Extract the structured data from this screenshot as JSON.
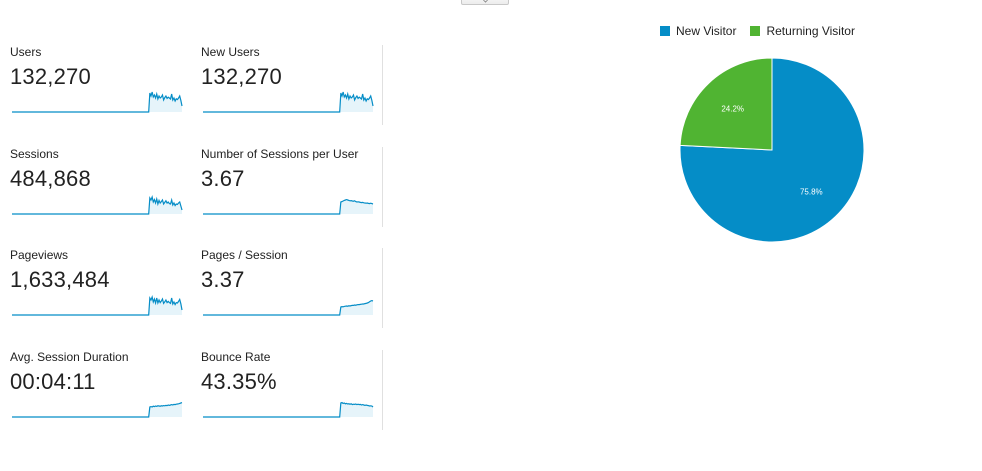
{
  "metrics": [
    {
      "label": "Users",
      "value": "132,270",
      "trend": [
        0,
        0,
        0,
        0,
        0,
        0,
        0,
        0,
        0,
        0,
        0,
        0,
        0,
        0,
        0,
        0,
        0,
        0,
        0,
        0,
        0,
        0,
        0,
        0,
        0,
        0,
        0,
        0,
        0,
        0,
        0,
        0,
        0,
        0,
        0,
        0,
        0,
        0,
        0,
        0,
        0,
        0,
        0,
        0,
        0,
        0,
        0,
        0,
        0,
        0,
        0,
        0,
        0,
        0,
        0,
        0,
        0,
        0,
        0,
        0,
        0,
        0,
        0,
        0,
        0,
        0,
        0,
        0,
        0,
        0,
        0,
        0,
        0,
        0,
        0,
        0,
        0,
        0,
        0,
        0,
        0,
        0,
        0,
        0,
        0,
        0,
        0,
        0,
        0,
        0,
        0,
        0,
        0,
        0,
        0,
        0,
        0,
        0,
        0,
        0,
        0,
        0,
        0,
        0,
        0,
        0,
        0,
        0,
        0,
        0,
        0,
        0,
        0,
        0,
        0,
        0,
        0,
        0,
        0,
        0,
        0.95,
        0.8,
        1.0,
        0.75,
        0.85,
        0.7,
        0.9,
        0.65,
        0.8,
        0.7,
        0.75,
        0.85,
        0.6,
        0.72,
        0.8,
        0.68,
        0.74,
        0.7,
        0.65,
        0.9,
        0.6,
        0.7,
        0.55,
        0.66,
        0.62,
        0.7,
        0.8,
        0.58,
        0.3
      ]
    },
    {
      "label": "New Users",
      "value": "132,270",
      "trend": [
        0,
        0,
        0,
        0,
        0,
        0,
        0,
        0,
        0,
        0,
        0,
        0,
        0,
        0,
        0,
        0,
        0,
        0,
        0,
        0,
        0,
        0,
        0,
        0,
        0,
        0,
        0,
        0,
        0,
        0,
        0,
        0,
        0,
        0,
        0,
        0,
        0,
        0,
        0,
        0,
        0,
        0,
        0,
        0,
        0,
        0,
        0,
        0,
        0,
        0,
        0,
        0,
        0,
        0,
        0,
        0,
        0,
        0,
        0,
        0,
        0,
        0,
        0,
        0,
        0,
        0,
        0,
        0,
        0,
        0,
        0,
        0,
        0,
        0,
        0,
        0,
        0,
        0,
        0,
        0,
        0,
        0,
        0,
        0,
        0,
        0,
        0,
        0,
        0,
        0,
        0,
        0,
        0,
        0,
        0,
        0,
        0,
        0,
        0,
        0,
        0,
        0,
        0,
        0,
        0,
        0,
        0,
        0,
        0,
        0,
        0,
        0,
        0,
        0,
        0,
        0,
        0,
        0,
        0,
        0,
        0.95,
        0.8,
        1.0,
        0.75,
        0.85,
        0.7,
        0.9,
        0.65,
        0.8,
        0.7,
        0.75,
        0.85,
        0.6,
        0.72,
        0.8,
        0.68,
        0.74,
        0.7,
        0.65,
        0.9,
        0.6,
        0.7,
        0.55,
        0.66,
        0.62,
        0.7,
        0.8,
        0.58,
        0.3
      ]
    },
    {
      "label": "Sessions",
      "value": "484,868",
      "trend": [
        0,
        0,
        0,
        0,
        0,
        0,
        0,
        0,
        0,
        0,
        0,
        0,
        0,
        0,
        0,
        0,
        0,
        0,
        0,
        0,
        0,
        0,
        0,
        0,
        0,
        0,
        0,
        0,
        0,
        0,
        0,
        0,
        0,
        0,
        0,
        0,
        0,
        0,
        0,
        0,
        0,
        0,
        0,
        0,
        0,
        0,
        0,
        0,
        0,
        0,
        0,
        0,
        0,
        0,
        0,
        0,
        0,
        0,
        0,
        0,
        0,
        0,
        0,
        0,
        0,
        0,
        0,
        0,
        0,
        0,
        0,
        0,
        0,
        0,
        0,
        0,
        0,
        0,
        0,
        0,
        0,
        0,
        0,
        0,
        0,
        0,
        0,
        0,
        0,
        0,
        0,
        0,
        0,
        0,
        0,
        0,
        0,
        0,
        0,
        0,
        0,
        0,
        0,
        0,
        0,
        0,
        0,
        0,
        0,
        0,
        0,
        0,
        0,
        0,
        0,
        0,
        0,
        0,
        0,
        0,
        0.8,
        0.7,
        0.85,
        0.6,
        0.72,
        0.55,
        0.75,
        0.5,
        0.68,
        0.55,
        0.62,
        0.7,
        0.5,
        0.58,
        0.66,
        0.55,
        0.6,
        0.52,
        0.5,
        0.7,
        0.45,
        0.55,
        0.42,
        0.5,
        0.48,
        0.55,
        0.6,
        0.4,
        0.2
      ]
    },
    {
      "label": "Number of Sessions per User",
      "value": "3.67",
      "trend": [
        0,
        0,
        0,
        0,
        0,
        0,
        0,
        0,
        0,
        0,
        0,
        0,
        0,
        0,
        0,
        0,
        0,
        0,
        0,
        0,
        0,
        0,
        0,
        0,
        0,
        0,
        0,
        0,
        0,
        0,
        0,
        0,
        0,
        0,
        0,
        0,
        0,
        0,
        0,
        0,
        0,
        0,
        0,
        0,
        0,
        0,
        0,
        0,
        0,
        0,
        0,
        0,
        0,
        0,
        0,
        0,
        0,
        0,
        0,
        0,
        0,
        0,
        0,
        0,
        0,
        0,
        0,
        0,
        0,
        0,
        0,
        0,
        0,
        0,
        0,
        0,
        0,
        0,
        0,
        0,
        0,
        0,
        0,
        0,
        0,
        0,
        0,
        0,
        0,
        0,
        0,
        0,
        0,
        0,
        0,
        0,
        0,
        0,
        0,
        0,
        0,
        0,
        0,
        0,
        0,
        0,
        0,
        0,
        0,
        0,
        0,
        0,
        0,
        0,
        0,
        0,
        0,
        0,
        0,
        0,
        0.6,
        0.62,
        0.65,
        0.68,
        0.7,
        0.72,
        0.7,
        0.68,
        0.66,
        0.67,
        0.65,
        0.64,
        0.66,
        0.62,
        0.6,
        0.61,
        0.6,
        0.58,
        0.57,
        0.58,
        0.56,
        0.55,
        0.54,
        0.55,
        0.53,
        0.52,
        0.54,
        0.52,
        0.5
      ]
    },
    {
      "label": "Pageviews",
      "value": "1,633,484",
      "trend": [
        0,
        0,
        0,
        0,
        0,
        0,
        0,
        0,
        0,
        0,
        0,
        0,
        0,
        0,
        0,
        0,
        0,
        0,
        0,
        0,
        0,
        0,
        0,
        0,
        0,
        0,
        0,
        0,
        0,
        0,
        0,
        0,
        0,
        0,
        0,
        0,
        0,
        0,
        0,
        0,
        0,
        0,
        0,
        0,
        0,
        0,
        0,
        0,
        0,
        0,
        0,
        0,
        0,
        0,
        0,
        0,
        0,
        0,
        0,
        0,
        0,
        0,
        0,
        0,
        0,
        0,
        0,
        0,
        0,
        0,
        0,
        0,
        0,
        0,
        0,
        0,
        0,
        0,
        0,
        0,
        0,
        0,
        0,
        0,
        0,
        0,
        0,
        0,
        0,
        0,
        0,
        0,
        0,
        0,
        0,
        0,
        0,
        0,
        0,
        0,
        0,
        0,
        0,
        0,
        0,
        0,
        0,
        0,
        0,
        0,
        0,
        0,
        0,
        0,
        0,
        0,
        0,
        0,
        0,
        0,
        0.85,
        0.75,
        0.9,
        0.65,
        0.8,
        0.6,
        0.85,
        0.6,
        0.75,
        0.62,
        0.7,
        0.8,
        0.58,
        0.66,
        0.75,
        0.62,
        0.68,
        0.62,
        0.58,
        0.85,
        0.55,
        0.65,
        0.52,
        0.62,
        0.6,
        0.68,
        0.78,
        0.56,
        0.25
      ]
    },
    {
      "label": "Pages / Session",
      "value": "3.37",
      "trend": [
        0,
        0,
        0,
        0,
        0,
        0,
        0,
        0,
        0,
        0,
        0,
        0,
        0,
        0,
        0,
        0,
        0,
        0,
        0,
        0,
        0,
        0,
        0,
        0,
        0,
        0,
        0,
        0,
        0,
        0,
        0,
        0,
        0,
        0,
        0,
        0,
        0,
        0,
        0,
        0,
        0,
        0,
        0,
        0,
        0,
        0,
        0,
        0,
        0,
        0,
        0,
        0,
        0,
        0,
        0,
        0,
        0,
        0,
        0,
        0,
        0,
        0,
        0,
        0,
        0,
        0,
        0,
        0,
        0,
        0,
        0,
        0,
        0,
        0,
        0,
        0,
        0,
        0,
        0,
        0,
        0,
        0,
        0,
        0,
        0,
        0,
        0,
        0,
        0,
        0,
        0,
        0,
        0,
        0,
        0,
        0,
        0,
        0,
        0,
        0,
        0,
        0,
        0,
        0,
        0,
        0,
        0,
        0,
        0,
        0,
        0,
        0,
        0,
        0,
        0,
        0,
        0,
        0,
        0,
        0,
        0.4,
        0.42,
        0.41,
        0.43,
        0.44,
        0.45,
        0.44,
        0.46,
        0.45,
        0.47,
        0.48,
        0.48,
        0.5,
        0.49,
        0.51,
        0.52,
        0.52,
        0.53,
        0.54,
        0.55,
        0.55,
        0.57,
        0.58,
        0.6,
        0.62,
        0.66,
        0.7,
        0.72,
        0.7
      ]
    },
    {
      "label": "Avg. Session Duration",
      "value": "00:04:11",
      "trend": [
        0,
        0,
        0,
        0,
        0,
        0,
        0,
        0,
        0,
        0,
        0,
        0,
        0,
        0,
        0,
        0,
        0,
        0,
        0,
        0,
        0,
        0,
        0,
        0,
        0,
        0,
        0,
        0,
        0,
        0,
        0,
        0,
        0,
        0,
        0,
        0,
        0,
        0,
        0,
        0,
        0,
        0,
        0,
        0,
        0,
        0,
        0,
        0,
        0,
        0,
        0,
        0,
        0,
        0,
        0,
        0,
        0,
        0,
        0,
        0,
        0,
        0,
        0,
        0,
        0,
        0,
        0,
        0,
        0,
        0,
        0,
        0,
        0,
        0,
        0,
        0,
        0,
        0,
        0,
        0,
        0,
        0,
        0,
        0,
        0,
        0,
        0,
        0,
        0,
        0,
        0,
        0,
        0,
        0,
        0,
        0,
        0,
        0,
        0,
        0,
        0,
        0,
        0,
        0,
        0,
        0,
        0,
        0,
        0,
        0,
        0,
        0,
        0,
        0,
        0,
        0,
        0,
        0,
        0,
        0,
        0.5,
        0.52,
        0.5,
        0.54,
        0.52,
        0.55,
        0.53,
        0.56,
        0.55,
        0.54,
        0.56,
        0.55,
        0.57,
        0.56,
        0.58,
        0.57,
        0.6,
        0.58,
        0.6,
        0.62,
        0.6,
        0.63,
        0.62,
        0.64,
        0.65,
        0.66,
        0.68,
        0.7,
        0.72
      ]
    },
    {
      "label": "Bounce Rate",
      "value": "43.35%",
      "trend": [
        0,
        0,
        0,
        0,
        0,
        0,
        0,
        0,
        0,
        0,
        0,
        0,
        0,
        0,
        0,
        0,
        0,
        0,
        0,
        0,
        0,
        0,
        0,
        0,
        0,
        0,
        0,
        0,
        0,
        0,
        0,
        0,
        0,
        0,
        0,
        0,
        0,
        0,
        0,
        0,
        0,
        0,
        0,
        0,
        0,
        0,
        0,
        0,
        0,
        0,
        0,
        0,
        0,
        0,
        0,
        0,
        0,
        0,
        0,
        0,
        0,
        0,
        0,
        0,
        0,
        0,
        0,
        0,
        0,
        0,
        0,
        0,
        0,
        0,
        0,
        0,
        0,
        0,
        0,
        0,
        0,
        0,
        0,
        0,
        0,
        0,
        0,
        0,
        0,
        0,
        0,
        0,
        0,
        0,
        0,
        0,
        0,
        0,
        0,
        0,
        0,
        0,
        0,
        0,
        0,
        0,
        0,
        0,
        0,
        0,
        0,
        0,
        0,
        0,
        0,
        0,
        0,
        0,
        0,
        0,
        0.7,
        0.72,
        0.68,
        0.7,
        0.66,
        0.68,
        0.65,
        0.66,
        0.64,
        0.66,
        0.62,
        0.64,
        0.63,
        0.65,
        0.62,
        0.64,
        0.62,
        0.63,
        0.6,
        0.62,
        0.6,
        0.58,
        0.6,
        0.58,
        0.57,
        0.55,
        0.56,
        0.55,
        0.5
      ]
    }
  ],
  "colors": {
    "sparkline_line": "#058dc7",
    "sparkline_fill": "#e6f4fa",
    "new_visitor": "#058dc7",
    "returning_visitor": "#50b432"
  },
  "chart_data": {
    "type": "pie",
    "legend_position": "top",
    "series": [
      {
        "name": "New Visitor",
        "value": 75.8,
        "label": "75.8%",
        "color": "#058dc7"
      },
      {
        "name": "Returning Visitor",
        "value": 24.2,
        "label": "24.2%",
        "color": "#50b432"
      }
    ]
  }
}
